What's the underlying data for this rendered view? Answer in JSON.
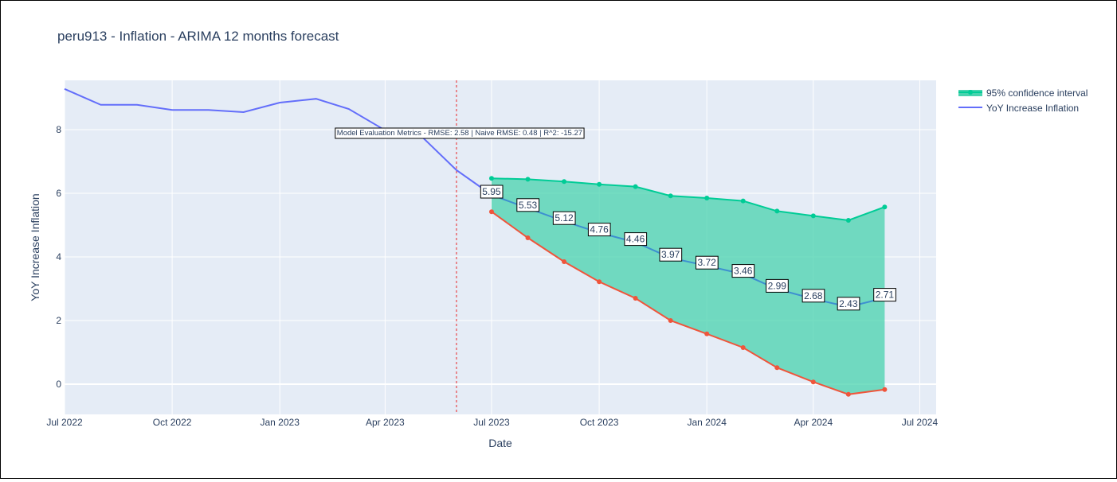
{
  "chart_data": {
    "type": "line",
    "title": "peru913 - Inflation - ARIMA 12 months forecast",
    "xlabel": "Date",
    "ylabel": "YoY Increase Inflation",
    "xlim": [
      "2022-07-01",
      "2024-07-15"
    ],
    "ylim": [
      -0.95,
      9.55
    ],
    "x_ticks": [
      "2022-07-01",
      "2022-10-01",
      "2023-01-01",
      "2023-04-01",
      "2023-07-01",
      "2023-10-01",
      "2024-01-01",
      "2024-04-01",
      "2024-07-01"
    ],
    "x_tick_labels": [
      "Jul 2022",
      "Oct 2022",
      "Jan 2023",
      "Apr 2023",
      "Jul 2023",
      "Oct 2023",
      "Jan 2024",
      "Apr 2024",
      "Jul 2024"
    ],
    "y_ticks": [
      0,
      2,
      4,
      6,
      8
    ],
    "y_tick_labels": [
      "0",
      "2",
      "4",
      "6",
      "8"
    ],
    "grid": true,
    "legend_position": "top-right",
    "colors": {
      "history": "#636efa",
      "forecast": "#3d8fd0",
      "upper": "#00cc96",
      "lower": "#ef553b",
      "band": "#48d3ae",
      "cutoff": "#e8474a",
      "plot_bg": "#e5ecf6"
    },
    "cutoff_date": "2023-06-01",
    "metrics_annotation": "Model Evaluation Metrics - RMSE: 2.58 | Naive RMSE: 0.48 | R^2: -15.27",
    "series": [
      {
        "name": "YoY Increase Inflation",
        "role": "history",
        "x": [
          "2022-07-01",
          "2022-08-01",
          "2022-09-01",
          "2022-10-01",
          "2022-11-01",
          "2022-12-01",
          "2023-01-01",
          "2023-02-01",
          "2023-03-01",
          "2023-04-01",
          "2023-05-01",
          "2023-06-01",
          "2023-07-01"
        ],
        "y": [
          9.28,
          8.78,
          8.78,
          8.62,
          8.62,
          8.55,
          8.85,
          8.97,
          8.65,
          7.98,
          7.83,
          6.73,
          5.95
        ]
      },
      {
        "name": "",
        "role": "forecast",
        "x": [
          "2023-07-01",
          "2023-08-01",
          "2023-09-01",
          "2023-10-01",
          "2023-11-01",
          "2023-12-01",
          "2024-01-01",
          "2024-02-01",
          "2024-03-01",
          "2024-04-01",
          "2024-05-01",
          "2024-06-01"
        ],
        "y": [
          5.95,
          5.53,
          5.12,
          4.76,
          4.46,
          3.97,
          3.72,
          3.46,
          2.99,
          2.68,
          2.43,
          2.71
        ],
        "labels": [
          "5.95",
          "5.53",
          "5.12",
          "4.76",
          "4.46",
          "3.97",
          "3.72",
          "3.46",
          "2.99",
          "2.68",
          "2.43",
          "2.71"
        ]
      },
      {
        "name": "95% confidence interval",
        "role": "upper",
        "x": [
          "2023-07-01",
          "2023-08-01",
          "2023-09-01",
          "2023-10-01",
          "2023-11-01",
          "2023-12-01",
          "2024-01-01",
          "2024-02-01",
          "2024-03-01",
          "2024-04-01",
          "2024-05-01",
          "2024-06-01"
        ],
        "y": [
          6.47,
          6.44,
          6.37,
          6.28,
          6.21,
          5.92,
          5.85,
          5.76,
          5.44,
          5.29,
          5.15,
          5.57
        ]
      },
      {
        "name": "",
        "role": "lower",
        "x": [
          "2023-07-01",
          "2023-08-01",
          "2023-09-01",
          "2023-10-01",
          "2023-11-01",
          "2023-12-01",
          "2024-01-01",
          "2024-02-01",
          "2024-03-01",
          "2024-04-01",
          "2024-05-01",
          "2024-06-01"
        ],
        "y": [
          5.42,
          4.6,
          3.85,
          3.22,
          2.7,
          2.0,
          1.58,
          1.15,
          0.52,
          0.07,
          -0.32,
          -0.17
        ]
      }
    ],
    "legend": [
      {
        "label": "95% confidence interval",
        "style": "band"
      },
      {
        "label": "YoY Increase Inflation",
        "style": "line"
      }
    ]
  }
}
